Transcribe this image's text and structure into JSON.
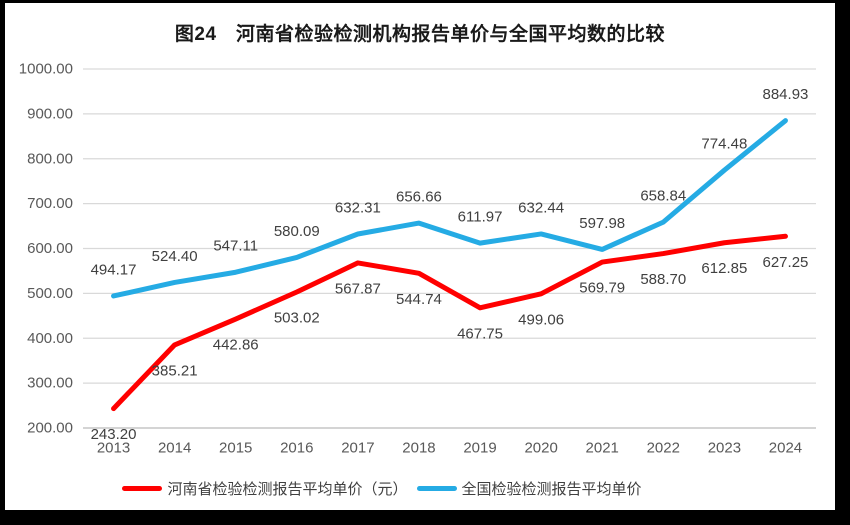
{
  "frame": {
    "background": "#000000"
  },
  "chart_data": {
    "type": "line",
    "title": "图24　河南省检验检测机构报告单价与全国平均数的比较",
    "categories": [
      "2013",
      "2014",
      "2015",
      "2016",
      "2017",
      "2018",
      "2019",
      "2020",
      "2021",
      "2022",
      "2023",
      "2024"
    ],
    "series": [
      {
        "name": "河南省检验检测报告平均单价（元）",
        "color": "#FF0000",
        "label_position": "below",
        "values": [
          243.2,
          385.21,
          442.86,
          503.02,
          567.87,
          544.74,
          467.75,
          499.06,
          569.79,
          588.7,
          612.85,
          627.25
        ]
      },
      {
        "name": "全国检验检测报告平均单价",
        "color": "#25ABE4",
        "label_position": "above",
        "values": [
          494.17,
          524.4,
          547.11,
          580.09,
          632.31,
          656.66,
          611.97,
          632.44,
          597.98,
          658.84,
          774.48,
          884.93
        ]
      }
    ],
    "y_axis": {
      "min": 200,
      "max": 1000,
      "step": 100,
      "tick_format_decimals": 2
    },
    "grid": true,
    "legend_position": "bottom",
    "colors": {
      "gridline": "#D9D9D9",
      "axis_line": "#BFBFBF",
      "tick_label": "#595959",
      "data_label": "#404040"
    }
  }
}
